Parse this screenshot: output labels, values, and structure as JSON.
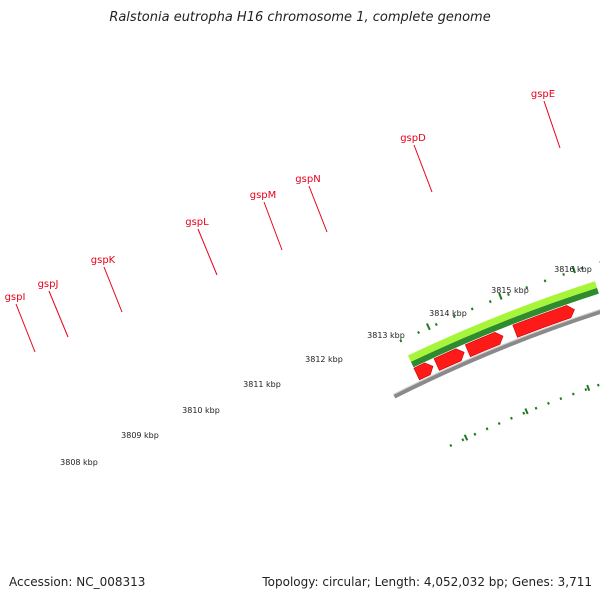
{
  "title": "Ralstonia eutropha H16 chromosome 1, complete genome",
  "accession_text": "Accession: NC_008313",
  "stats_text": "Topology: circular; Length: 4,052,032 bp; Genes: 3,711",
  "colors": {
    "gene_red": "#ff1a1a",
    "gene_red_dark": "#c80000",
    "gene_lime": "#a6f53a",
    "gene_dark_green": "#2e8b2e",
    "backbone": "#8a8a8a",
    "label_red": "#e8001c",
    "tick_green": "#1f7a1f"
  },
  "genes": [
    {
      "name": "gspI"
    },
    {
      "name": "gspJ"
    },
    {
      "name": "gspK"
    },
    {
      "name": "gspL"
    },
    {
      "name": "gspM"
    },
    {
      "name": "gspN"
    },
    {
      "name": "gspD"
    },
    {
      "name": "gspE"
    }
  ],
  "scale_labels": [
    "3808 kbp",
    "3809 kbp",
    "3810 kbp",
    "3811 kbp",
    "3812 kbp",
    "3813 kbp",
    "3814 kbp",
    "3815 kbp",
    "3816 kbp"
  ]
}
